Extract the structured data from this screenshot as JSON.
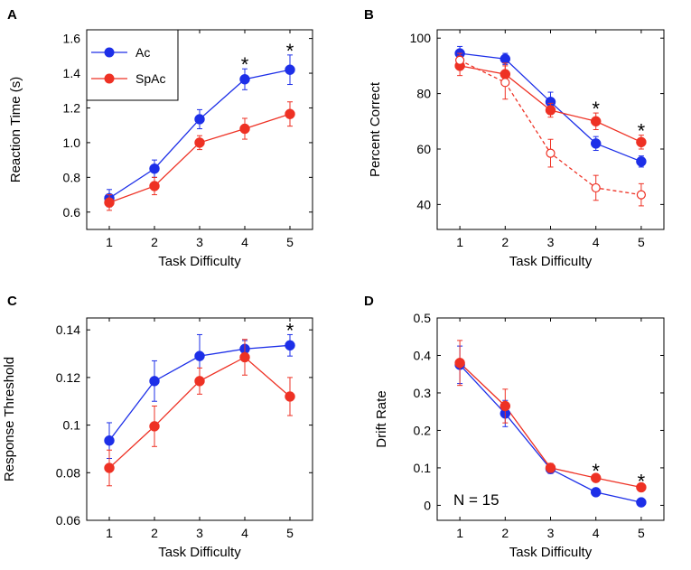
{
  "colors": {
    "Ac": "#1d2fe8",
    "SpAc": "#ee3124",
    "axis": "#000000"
  },
  "legend": [
    {
      "name": "Ac",
      "color": "#1d2fe8"
    },
    {
      "name": "SpAc",
      "color": "#ee3124"
    }
  ],
  "chart_data": [
    {
      "panel": "A",
      "type": "line",
      "xlabel": "Task Difficulty",
      "ylabel": "Reaction Time (s)",
      "x": [
        1,
        2,
        3,
        4,
        5
      ],
      "xlim": [
        0.5,
        5.5
      ],
      "ylim": [
        0.5,
        1.65
      ],
      "yticks": [
        0.6,
        0.8,
        1.0,
        1.2,
        1.4,
        1.6
      ],
      "ytick_labels": [
        "0.6",
        "0.8",
        "1.0",
        "1.2",
        "1.4",
        "1.6"
      ],
      "legend": "top-left",
      "series": [
        {
          "name": "Ac",
          "values": [
            0.68,
            0.85,
            1.135,
            1.365,
            1.42
          ],
          "errors": [
            0.05,
            0.05,
            0.055,
            0.06,
            0.085
          ],
          "marker": "filled",
          "dashed": false
        },
        {
          "name": "SpAc",
          "values": [
            0.655,
            0.75,
            1.0,
            1.08,
            1.165
          ],
          "errors": [
            0.045,
            0.05,
            0.04,
            0.06,
            0.07
          ],
          "marker": "filled",
          "dashed": false
        }
      ],
      "significance_x": [
        4,
        5
      ],
      "significance_symbol": "*"
    },
    {
      "panel": "B",
      "type": "line",
      "xlabel": "Task Difficulty",
      "ylabel": "Percent Correct",
      "x": [
        1,
        2,
        3,
        4,
        5
      ],
      "xlim": [
        0.5,
        5.5
      ],
      "ylim": [
        31,
        103
      ],
      "yticks": [
        40,
        60,
        80,
        100
      ],
      "ytick_labels": [
        "40",
        "60",
        "80",
        "100"
      ],
      "series": [
        {
          "name": "Ac",
          "values": [
            94.5,
            92.5,
            77,
            62,
            55.5
          ],
          "errors": [
            2.5,
            2.0,
            3.5,
            2.5,
            2.0
          ],
          "marker": "filled",
          "dashed": false
        },
        {
          "name": "SpAc",
          "values": [
            90,
            87,
            74,
            70,
            62.5
          ],
          "errors": [
            3.5,
            4.0,
            2.5,
            3.0,
            2.5
          ],
          "marker": "filled",
          "dashed": false
        },
        {
          "name": "SpAc (open)",
          "values": [
            92,
            84,
            58.5,
            46,
            43.5
          ],
          "errors": [
            2.5,
            6.0,
            5.0,
            4.5,
            4.0
          ],
          "marker": "open",
          "dashed": true
        }
      ],
      "significance_x": [
        4,
        5
      ],
      "significance_symbol": "*"
    },
    {
      "panel": "C",
      "type": "line",
      "xlabel": "Task Difficulty",
      "ylabel": "Response Threshold",
      "x": [
        1,
        2,
        3,
        4,
        5
      ],
      "xlim": [
        0.5,
        5.5
      ],
      "ylim": [
        0.06,
        0.145
      ],
      "yticks": [
        0.06,
        0.08,
        0.1,
        0.12,
        0.14
      ],
      "ytick_labels": [
        "0.06",
        "0.08",
        "0.1",
        "0.12",
        "0.14"
      ],
      "series": [
        {
          "name": "Ac",
          "values": [
            0.0935,
            0.1185,
            0.129,
            0.132,
            0.1335
          ],
          "errors": [
            0.0075,
            0.0085,
            0.009,
            0.0035,
            0.0045
          ],
          "marker": "filled",
          "dashed": false
        },
        {
          "name": "SpAc",
          "values": [
            0.082,
            0.0995,
            0.1185,
            0.1285,
            0.112
          ],
          "errors": [
            0.0075,
            0.0085,
            0.0055,
            0.0075,
            0.008
          ],
          "marker": "filled",
          "dashed": false
        }
      ],
      "significance_x": [
        5
      ],
      "significance_symbol": "*"
    },
    {
      "panel": "D",
      "type": "line",
      "xlabel": "Task Difficulty",
      "ylabel": "Drift Rate",
      "x": [
        1,
        2,
        3,
        4,
        5
      ],
      "xlim": [
        0.5,
        5.5
      ],
      "ylim": [
        -0.04,
        0.5
      ],
      "yticks": [
        0,
        0.1,
        0.2,
        0.3,
        0.4,
        0.5
      ],
      "ytick_labels": [
        "0",
        "0.1",
        "0.2",
        "0.3",
        "0.4",
        "0.5"
      ],
      "annotation": "N = 15",
      "series": [
        {
          "name": "Ac",
          "values": [
            0.375,
            0.245,
            0.097,
            0.035,
            0.008
          ],
          "errors": [
            0.05,
            0.035,
            0.012,
            0.005,
            0.005
          ],
          "marker": "filled",
          "dashed": false
        },
        {
          "name": "SpAc",
          "values": [
            0.38,
            0.265,
            0.1,
            0.073,
            0.048
          ],
          "errors": [
            0.06,
            0.045,
            0.012,
            0.008,
            0.005
          ],
          "marker": "filled",
          "dashed": false
        }
      ],
      "significance_x": [
        4,
        5
      ],
      "significance_symbol": "*"
    }
  ]
}
